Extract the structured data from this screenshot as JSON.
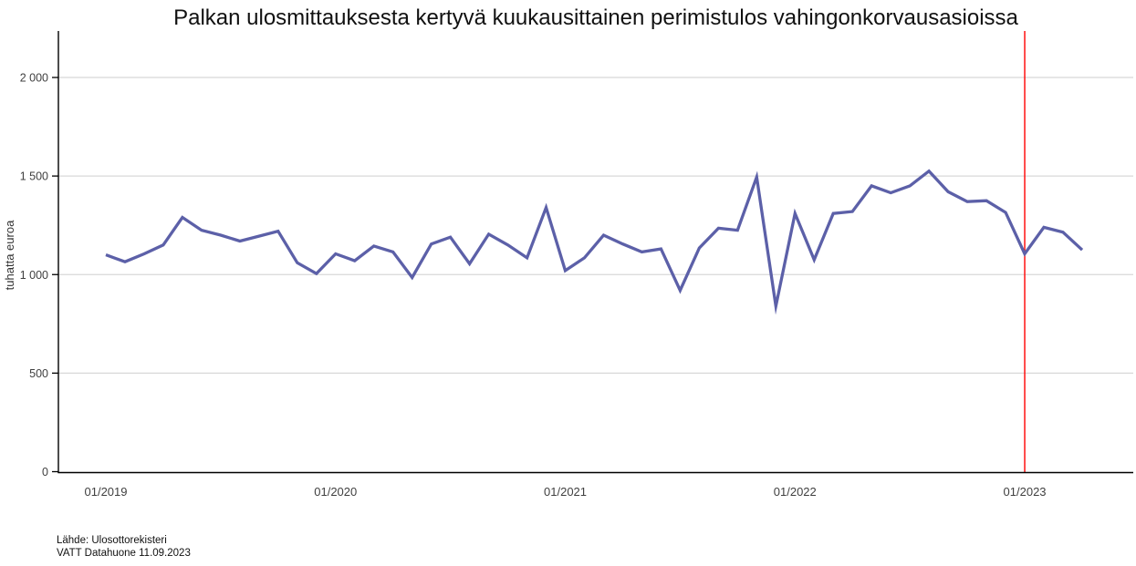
{
  "title": "Palkan ulosmittauksesta kertyvä kuukausittainen perimistulos vahingonkorvausasioissa",
  "source": {
    "line1": "Lähde: Ulosottorekisteri",
    "line2": "VATT Datahuone 11.09.2023"
  },
  "colors": {
    "line": "#5c60a8",
    "event_line": "#ff0000",
    "grid": "#d8d8d8",
    "axis": "#000000",
    "tick_text": "#404040"
  },
  "chart_data": {
    "type": "line",
    "title": "Palkan ulosmittauksesta kertyvä kuukausittainen perimistulos vahingonkorvausasioissa",
    "xlabel": "",
    "ylabel": "tuhatta euroa",
    "ylim": [
      0,
      2235
    ],
    "grid": "horizontal-only",
    "legend": "none",
    "x_tick_labels": [
      "01/2019",
      "01/2020",
      "01/2021",
      "01/2022",
      "01/2023"
    ],
    "y_ticks": [
      0,
      500,
      1000,
      1500,
      2000
    ],
    "y_tick_labels": [
      "0",
      "500",
      "1 000",
      "1 500",
      "2 000"
    ],
    "vline": {
      "x": "01/2023",
      "color": "#ff0000"
    },
    "x": [
      "01/2019",
      "02/2019",
      "03/2019",
      "04/2019",
      "05/2019",
      "06/2019",
      "07/2019",
      "08/2019",
      "09/2019",
      "10/2019",
      "11/2019",
      "12/2019",
      "01/2020",
      "02/2020",
      "03/2020",
      "04/2020",
      "05/2020",
      "06/2020",
      "07/2020",
      "08/2020",
      "09/2020",
      "10/2020",
      "11/2020",
      "12/2020",
      "01/2021",
      "02/2021",
      "03/2021",
      "04/2021",
      "05/2021",
      "06/2021",
      "07/2021",
      "08/2021",
      "09/2021",
      "10/2021",
      "11/2021",
      "12/2021",
      "01/2022",
      "02/2022",
      "03/2022",
      "04/2022",
      "05/2022",
      "06/2022",
      "07/2022",
      "08/2022",
      "09/2022",
      "10/2022",
      "11/2022",
      "12/2022",
      "01/2023",
      "02/2023",
      "03/2023",
      "04/2023"
    ],
    "values": [
      1100,
      1065,
      1105,
      1150,
      1290,
      1225,
      1200,
      1170,
      1195,
      1220,
      1060,
      1005,
      1105,
      1070,
      1145,
      1115,
      985,
      1155,
      1190,
      1055,
      1205,
      1150,
      1085,
      1340,
      1020,
      1085,
      1200,
      1155,
      1115,
      1130,
      920,
      1135,
      1235,
      1225,
      1495,
      840,
      1310,
      1075,
      1310,
      1320,
      1450,
      1415,
      1450,
      1525,
      1420,
      1370,
      1375,
      1315,
      1105,
      1240,
      1215,
      1125
    ]
  }
}
